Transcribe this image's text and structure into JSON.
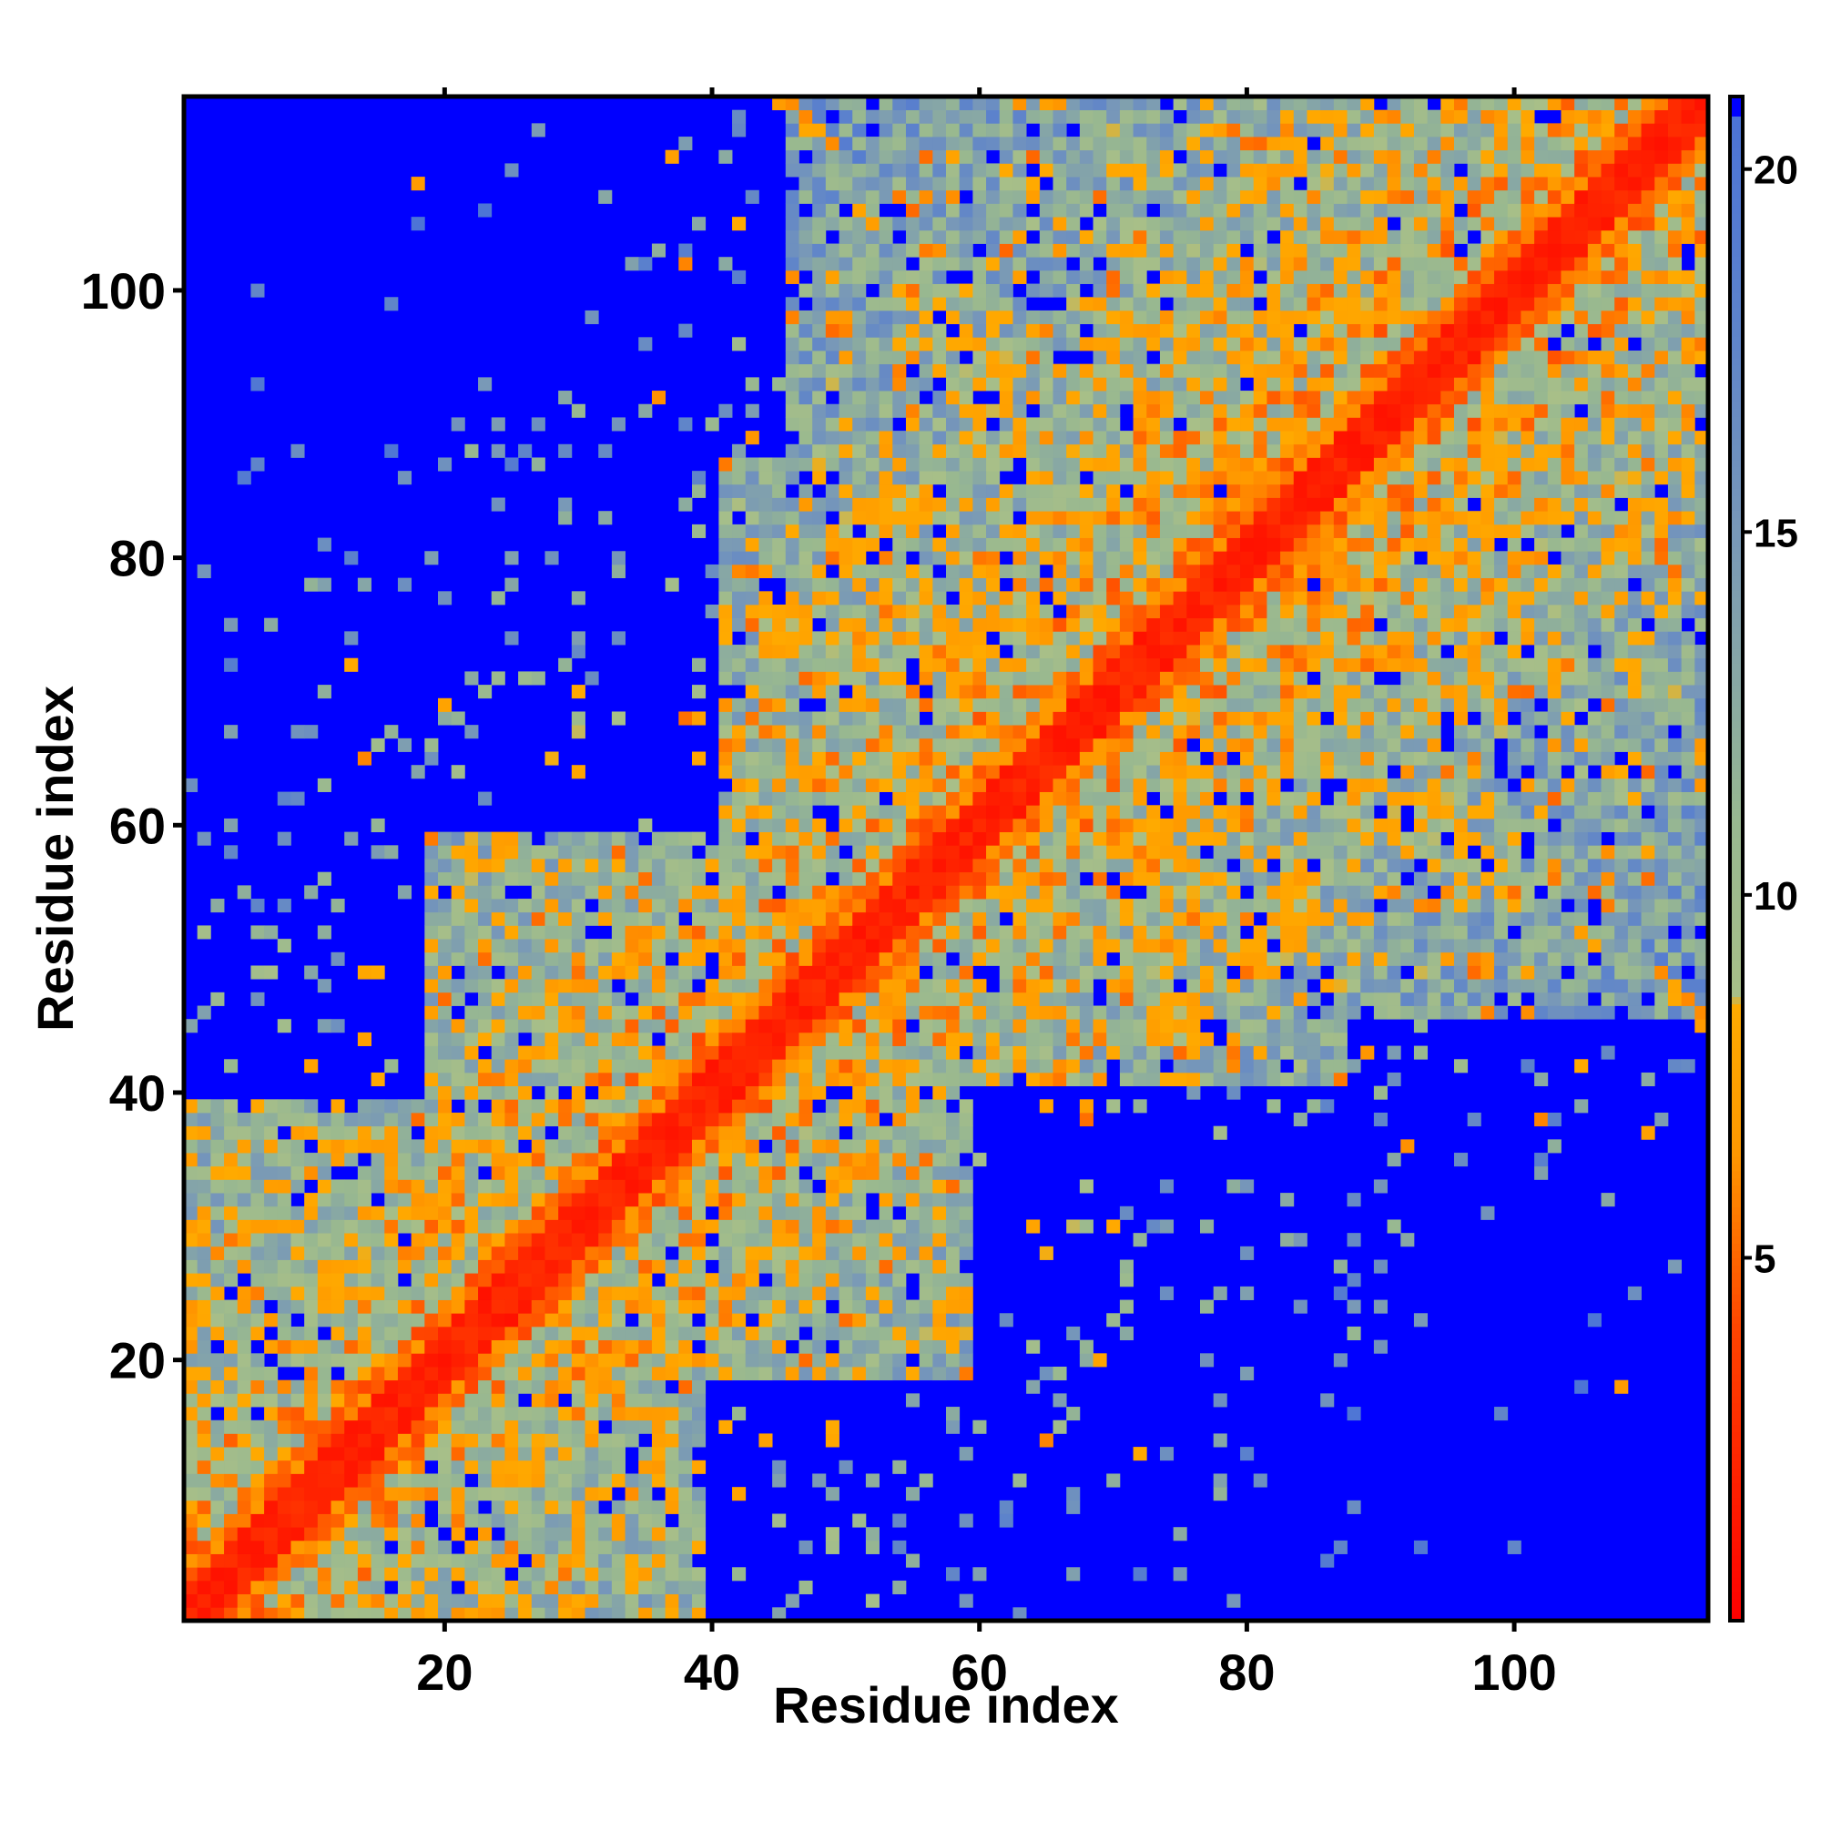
{
  "chart_data": {
    "type": "heatmap",
    "title": "",
    "xlabel": "Residue index",
    "ylabel": "Residue index",
    "n_residues": 114,
    "xlim": [
      0.5,
      114.5
    ],
    "ylim": [
      0.5,
      114.5
    ],
    "x_ticks": [
      20,
      40,
      60,
      80,
      100
    ],
    "y_ticks": [
      20,
      40,
      60,
      80,
      100
    ],
    "legend_position": "right (colorbar)",
    "colorbar": {
      "range": [
        0,
        21
      ],
      "ticks": [
        5,
        10,
        15,
        20
      ],
      "stops": [
        {
          "value": 0,
          "color": "#ff0000"
        },
        {
          "value": 4,
          "color": "#ff4400"
        },
        {
          "value": 6.5,
          "color": "#ff9900"
        },
        {
          "value": 8.5,
          "color": "#ffaa00"
        },
        {
          "value": 8.6,
          "color": "#a8bf88"
        },
        {
          "value": 11,
          "color": "#98b890"
        },
        {
          "value": 15,
          "color": "#7898b8"
        },
        {
          "value": 18,
          "color": "#5c82cc"
        },
        {
          "value": 21,
          "color": "#4a72d8"
        }
      ],
      "out_of_range_color": "#0000ff"
    },
    "grid": false,
    "symmetric": true,
    "diagonal_band": {
      "red_within": 2,
      "orange_within": 4
    },
    "contact_features": [
      {
        "x": 48,
        "y": 53,
        "value": 6
      },
      {
        "x": 51,
        "y": 49,
        "value": 6
      },
      {
        "x": 84,
        "y": 79,
        "value": 6
      },
      {
        "x": 78,
        "y": 86,
        "value": 6
      },
      {
        "x": 58,
        "y": 72,
        "value": 7
      },
      {
        "x": 85,
        "y": 55,
        "value": 7
      },
      {
        "x": 92,
        "y": 60,
        "value": 7
      },
      {
        "x": 75,
        "y": 45,
        "value": 7
      },
      {
        "x": 66,
        "y": 27,
        "value": 7
      },
      {
        "x": 30,
        "y": 20,
        "value": 7
      },
      {
        "x": 23,
        "y": 58,
        "value": 7
      },
      {
        "x": 32,
        "y": 70,
        "value": 7
      },
      {
        "x": 60,
        "y": 95,
        "value": 7
      },
      {
        "x": 51,
        "y": 82,
        "value": 7
      },
      {
        "x": 100,
        "y": 89,
        "value": 7
      },
      {
        "x": 45,
        "y": 15,
        "value": 7
      }
    ],
    "out_of_range_regions": [
      {
        "x": [
          1,
          40
        ],
        "y": [
          60,
          114
        ]
      },
      {
        "x": [
          60,
          114
        ],
        "y": [
          1,
          40
        ]
      },
      {
        "x": [
          1,
          18
        ],
        "y": [
          40,
          114
        ]
      },
      {
        "x": [
          40,
          114
        ],
        "y": [
          1,
          18
        ]
      },
      {
        "x": [
          88,
          114
        ],
        "y": [
          1,
          45
        ]
      },
      {
        "x": [
          1,
          45
        ],
        "y": [
          88,
          114
        ]
      }
    ]
  }
}
